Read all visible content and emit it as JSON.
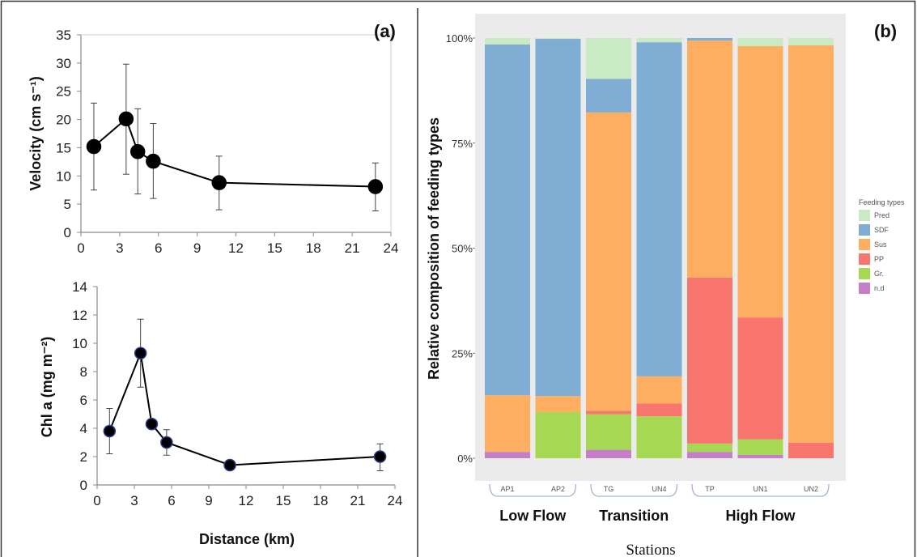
{
  "chart_data": [
    {
      "type": "line",
      "panel_label": "(a)",
      "ylabel": "Velocity (cm s⁻¹)",
      "xlim": [
        0,
        24
      ],
      "ylim": [
        0,
        35
      ],
      "xticks": [
        0,
        3,
        6,
        9,
        12,
        15,
        18,
        21,
        24
      ],
      "yticks": [
        0,
        5,
        10,
        15,
        20,
        25,
        30,
        35
      ],
      "x": [
        1.0,
        3.5,
        4.4,
        5.6,
        10.7,
        22.8
      ],
      "y": [
        15.2,
        20.1,
        14.3,
        12.6,
        8.8,
        8.1
      ],
      "err_low": [
        7.5,
        10.3,
        6.8,
        6.0,
        4.0,
        3.8
      ],
      "err_high": [
        22.9,
        29.8,
        21.9,
        19.3,
        13.5,
        12.3
      ]
    },
    {
      "type": "line",
      "xlabel": "Distance (km)",
      "ylabel": "Chl a (mg m⁻²)",
      "xlim": [
        0,
        24
      ],
      "ylim": [
        0,
        14
      ],
      "xticks": [
        0,
        3,
        6,
        9,
        12,
        15,
        18,
        21,
        24
      ],
      "yticks": [
        0,
        2,
        4,
        6,
        8,
        10,
        12,
        14
      ],
      "x": [
        1.0,
        3.5,
        4.4,
        5.6,
        10.7,
        22.8
      ],
      "y": [
        3.8,
        9.3,
        4.3,
        3.0,
        1.4,
        2.0
      ],
      "err_low": [
        2.2,
        6.9,
        4.3,
        2.1,
        1.1,
        1.0
      ],
      "err_high": [
        5.4,
        11.7,
        4.3,
        3.9,
        1.7,
        2.9
      ]
    },
    {
      "type": "bar",
      "stacked": true,
      "panel_label": "(b)",
      "xlabel": "Stations",
      "ylabel": "Relative composition of feeding types",
      "yticks": [
        "0%",
        "25%",
        "50%",
        "75%",
        "100%"
      ],
      "categories": [
        "AP1",
        "AP2",
        "TG",
        "UN4",
        "TP",
        "UN1",
        "UN2"
      ],
      "groups": [
        {
          "label": "Low Flow",
          "members": [
            "AP1",
            "AP2"
          ]
        },
        {
          "label": "Transition",
          "members": [
            "TG",
            "UN4"
          ]
        },
        {
          "label": "High Flow",
          "members": [
            "TP",
            "UN1",
            "UN2"
          ]
        }
      ],
      "legend_title": "Feeding types",
      "series": [
        {
          "name": "n.d",
          "color": "#c37fc7",
          "values": [
            1.5,
            0,
            2,
            0,
            1.5,
            0.8,
            0
          ]
        },
        {
          "name": "Gr.",
          "color": "#a6d854",
          "values": [
            0,
            11,
            8.5,
            10,
            2,
            3.7,
            0
          ]
        },
        {
          "name": "PP",
          "color": "#f8766d",
          "values": [
            0,
            0,
            0.8,
            3,
            39.5,
            29,
            3.7
          ]
        },
        {
          "name": "Sus",
          "color": "#fdae61",
          "values": [
            13.5,
            3.8,
            71,
            6.5,
            56.4,
            64.6,
            94.6
          ]
        },
        {
          "name": "SDF",
          "color": "#7fadd3",
          "values": [
            83.5,
            85,
            8,
            79.5,
            0.6,
            0,
            0
          ]
        },
        {
          "name": "Pred",
          "color": "#c9ebc4",
          "values": [
            1.5,
            0.2,
            9.7,
            1,
            0,
            1.9,
            1.7
          ]
        }
      ],
      "legend_order": [
        "Pred",
        "SDF",
        "Sus",
        "PP",
        "Gr.",
        "n.d"
      ]
    }
  ]
}
